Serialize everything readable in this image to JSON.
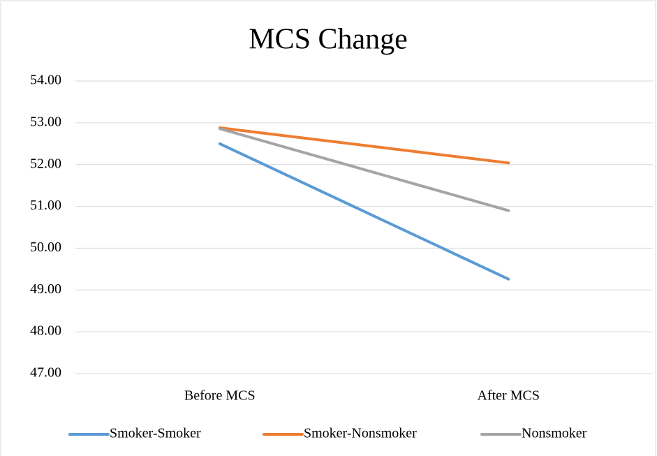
{
  "chart_data": {
    "type": "line",
    "title": "MCS Change",
    "categories": [
      "Before MCS",
      "After MCS"
    ],
    "series": [
      {
        "name": "Smoker-Smoker",
        "color": "#5b9bd5",
        "values": [
          52.5,
          49.26
        ]
      },
      {
        "name": "Smoker-Nonsmoker",
        "color": "#ed7d31",
        "values": [
          52.88,
          52.04
        ]
      },
      {
        "name": "Nonsmoker",
        "color": "#a5a5a5",
        "values": [
          52.86,
          50.9
        ]
      }
    ],
    "ylim": [
      47,
      54
    ],
    "yticks": [
      {
        "value": 47,
        "label": "47.00"
      },
      {
        "value": 48,
        "label": "48.00"
      },
      {
        "value": 49,
        "label": "49.00"
      },
      {
        "value": 50,
        "label": "50.00"
      },
      {
        "value": 51,
        "label": "51.00"
      },
      {
        "value": 52,
        "label": "52.00"
      },
      {
        "value": 53,
        "label": "53.00"
      },
      {
        "value": 54,
        "label": "54.00"
      }
    ],
    "grid": true,
    "legend": "bottom"
  }
}
